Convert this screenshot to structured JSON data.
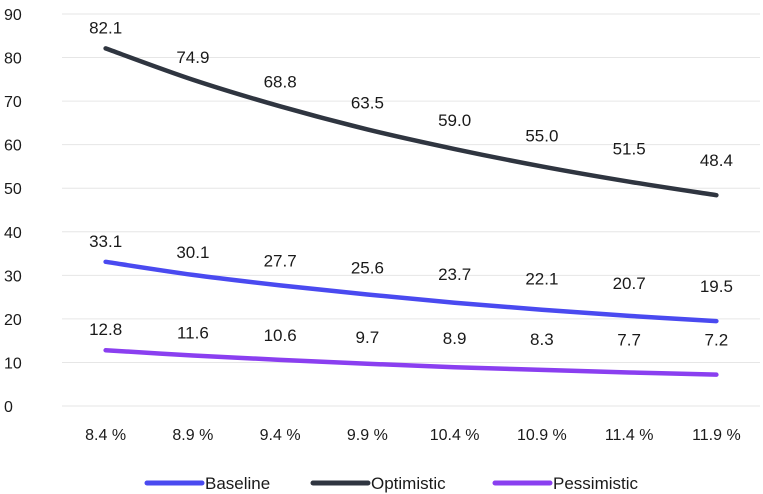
{
  "chart_data": {
    "type": "line",
    "x": [
      "8.4 %",
      "8.9 %",
      "9.4 %",
      "9.9 %",
      "10.4 %",
      "10.9 %",
      "11.4 %",
      "11.9 %"
    ],
    "ylim": [
      0,
      90
    ],
    "yticks": [
      0,
      10,
      20,
      30,
      40,
      50,
      60,
      70,
      80,
      90
    ],
    "grid": true,
    "legend_position": "bottom",
    "series": [
      {
        "name": "Baseline",
        "color": "#4a4af0",
        "values": [
          33.1,
          30.1,
          27.7,
          25.6,
          23.7,
          22.1,
          20.7,
          19.5
        ]
      },
      {
        "name": "Optimistic",
        "color": "#2f3540",
        "values": [
          82.1,
          74.9,
          68.8,
          63.5,
          59.0,
          55.0,
          51.5,
          48.4
        ]
      },
      {
        "name": "Pessimistic",
        "color": "#8a3ff0",
        "values": [
          12.8,
          11.6,
          10.6,
          9.7,
          8.9,
          8.3,
          7.7,
          7.2
        ]
      }
    ]
  }
}
